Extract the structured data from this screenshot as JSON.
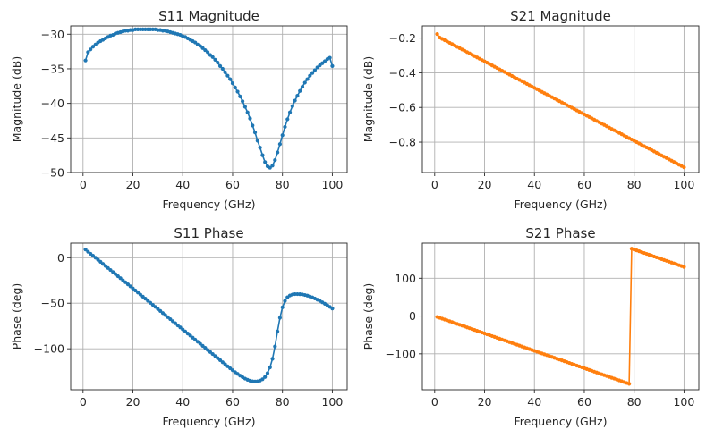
{
  "chart_data": [
    {
      "type": "line",
      "title": "S11 Magnitude",
      "xlabel": "Frequency (GHz)",
      "ylabel": "Magnitude (dB)",
      "xlim": [
        -4.95,
        105.95
      ],
      "ylim": [
        -50.0,
        -28.8
      ],
      "xticks": [
        0,
        20,
        40,
        60,
        80,
        100
      ],
      "yticks": [
        -50,
        -45,
        -40,
        -35,
        -30
      ],
      "xtick_labels": [
        "0",
        "20",
        "40",
        "60",
        "80",
        "100"
      ],
      "ytick_labels": [
        "−50",
        "−45",
        "−40",
        "−35",
        "−30"
      ],
      "grid": true,
      "marker": "circle",
      "color": "#1f77b4",
      "series": [
        {
          "name": "S11 Magnitude",
          "x": [
            1,
            2,
            3,
            4,
            5,
            6,
            7,
            8,
            9,
            10,
            11,
            12,
            13,
            14,
            15,
            16,
            17,
            18,
            19,
            20,
            21,
            22,
            23,
            24,
            25,
            26,
            27,
            28,
            29,
            30,
            31,
            32,
            33,
            34,
            35,
            36,
            37,
            38,
            39,
            40,
            41,
            42,
            43,
            44,
            45,
            46,
            47,
            48,
            49,
            50,
            51,
            52,
            53,
            54,
            55,
            56,
            57,
            58,
            59,
            60,
            61,
            62,
            63,
            64,
            65,
            66,
            67,
            68,
            69,
            70,
            71,
            72,
            73,
            74,
            75,
            76,
            77,
            78,
            79,
            80,
            81,
            82,
            83,
            84,
            85,
            86,
            87,
            88,
            89,
            90,
            91,
            92,
            93,
            94,
            95,
            96,
            97,
            98,
            99,
            100
          ],
          "y": [
            -33.8,
            -32.6,
            -32.2,
            -31.8,
            -31.5,
            -31.2,
            -31.0,
            -30.8,
            -30.6,
            -30.4,
            -30.2,
            -30.1,
            -29.9,
            -29.8,
            -29.7,
            -29.6,
            -29.5,
            -29.5,
            -29.4,
            -29.4,
            -29.3,
            -29.3,
            -29.3,
            -29.3,
            -29.3,
            -29.3,
            -29.3,
            -29.3,
            -29.3,
            -29.4,
            -29.4,
            -29.5,
            -29.5,
            -29.6,
            -29.7,
            -29.8,
            -29.9,
            -30.0,
            -30.1,
            -30.3,
            -30.4,
            -30.6,
            -30.8,
            -31.0,
            -31.2,
            -31.5,
            -31.7,
            -32.0,
            -32.3,
            -32.6,
            -33.0,
            -33.3,
            -33.7,
            -34.1,
            -34.6,
            -35.0,
            -35.5,
            -36.0,
            -36.5,
            -37.1,
            -37.7,
            -38.3,
            -39.0,
            -39.7,
            -40.5,
            -41.3,
            -42.2,
            -43.2,
            -44.2,
            -45.4,
            -46.4,
            -47.5,
            -48.5,
            -49.1,
            -49.3,
            -49.0,
            -48.2,
            -47.1,
            -45.9,
            -44.6,
            -43.4,
            -42.3,
            -41.3,
            -40.4,
            -39.6,
            -38.9,
            -38.2,
            -37.6,
            -37.0,
            -36.5,
            -36.0,
            -35.6,
            -35.2,
            -34.8,
            -34.5,
            -34.2,
            -33.9,
            -33.6,
            -33.4,
            -34.6
          ]
        }
      ]
    },
    {
      "type": "line",
      "title": "S21 Magnitude",
      "xlabel": "Frequency (GHz)",
      "ylabel": "Magnitude (dB)",
      "xlim": [
        -4.95,
        105.95
      ],
      "ylim": [
        -0.975,
        -0.13
      ],
      "xticks": [
        0,
        20,
        40,
        60,
        80,
        100
      ],
      "yticks": [
        -0.8,
        -0.6,
        -0.4,
        -0.2
      ],
      "xtick_labels": [
        "0",
        "20",
        "40",
        "60",
        "80",
        "100"
      ],
      "ytick_labels": [
        "−0.8",
        "−0.6",
        "−0.4",
        "−0.2"
      ],
      "grid": true,
      "marker": "circle",
      "color": "#ff7f0e",
      "series": [
        {
          "name": "S21 Magnitude",
          "x_start": 1,
          "x_end": 100,
          "x_step": 1,
          "y_start": -0.177,
          "y_second": -0.197,
          "y_end": -0.945
        }
      ]
    },
    {
      "type": "line",
      "title": "S11 Phase",
      "xlabel": "Frequency (GHz)",
      "ylabel": "Phase (deg)",
      "xlim": [
        -4.95,
        105.95
      ],
      "ylim": [
        -145.0,
        16.0
      ],
      "xticks": [
        0,
        20,
        40,
        60,
        80,
        100
      ],
      "yticks": [
        -100,
        -50,
        0
      ],
      "xtick_labels": [
        "0",
        "20",
        "40",
        "60",
        "80",
        "100"
      ],
      "ytick_labels": [
        "−100",
        "−50",
        "0"
      ],
      "grid": true,
      "marker": "circle",
      "color": "#1f77b4",
      "series": [
        {
          "name": "S11 Phase",
          "x": [
            1,
            2,
            3,
            4,
            5,
            6,
            7,
            8,
            9,
            10,
            11,
            12,
            13,
            14,
            15,
            16,
            17,
            18,
            19,
            20,
            21,
            22,
            23,
            24,
            25,
            26,
            27,
            28,
            29,
            30,
            31,
            32,
            33,
            34,
            35,
            36,
            37,
            38,
            39,
            40,
            41,
            42,
            43,
            44,
            45,
            46,
            47,
            48,
            49,
            50,
            51,
            52,
            53,
            54,
            55,
            56,
            57,
            58,
            59,
            60,
            61,
            62,
            63,
            64,
            65,
            66,
            67,
            68,
            69,
            70,
            71,
            72,
            73,
            74,
            75,
            76,
            77,
            78,
            79,
            80,
            81,
            82,
            83,
            84,
            85,
            86,
            87,
            88,
            89,
            90,
            91,
            92,
            93,
            94,
            95,
            96,
            97,
            98,
            99,
            100
          ],
          "y": [
            9.0,
            6.5,
            4.3,
            2.2,
            0.0,
            -2.3,
            -4.5,
            -6.8,
            -9.0,
            -11.3,
            -13.5,
            -15.8,
            -18.0,
            -20.3,
            -22.5,
            -24.8,
            -27.0,
            -29.3,
            -31.5,
            -33.8,
            -36.0,
            -38.3,
            -40.5,
            -42.8,
            -45.0,
            -47.3,
            -49.5,
            -51.8,
            -54.0,
            -56.3,
            -58.5,
            -60.8,
            -63.0,
            -65.3,
            -67.5,
            -69.8,
            -72.0,
            -74.3,
            -76.5,
            -78.8,
            -81.0,
            -83.3,
            -85.5,
            -87.8,
            -90.0,
            -92.3,
            -94.5,
            -96.8,
            -99.0,
            -101.3,
            -103.5,
            -105.8,
            -108.0,
            -110.3,
            -112.5,
            -114.8,
            -117.0,
            -119.3,
            -121.5,
            -123.6,
            -125.7,
            -127.6,
            -129.5,
            -131.2,
            -132.8,
            -134.1,
            -135.1,
            -135.8,
            -136.0,
            -135.8,
            -135.0,
            -133.5,
            -131.0,
            -126.8,
            -120.5,
            -111.0,
            -97.5,
            -81.0,
            -66.0,
            -54.5,
            -47.5,
            -43.5,
            -41.5,
            -40.5,
            -40.0,
            -40.0,
            -40.1,
            -40.4,
            -41.0,
            -41.7,
            -42.6,
            -43.6,
            -44.8,
            -46.1,
            -47.5,
            -49.0,
            -50.6,
            -52.3,
            -54.0,
            -55.8
          ]
        }
      ]
    },
    {
      "type": "line",
      "title": "S21 Phase",
      "xlabel": "Frequency (GHz)",
      "ylabel": "Phase (deg)",
      "xlim": [
        -4.95,
        105.95
      ],
      "ylim": [
        -195.0,
        193.0
      ],
      "xticks": [
        0,
        20,
        40,
        60,
        80,
        100
      ],
      "yticks": [
        -100,
        0,
        100
      ],
      "xtick_labels": [
        "0",
        "20",
        "40",
        "60",
        "80",
        "100"
      ],
      "ytick_labels": [
        "−100",
        "0",
        "100"
      ],
      "grid": true,
      "marker": "circle",
      "color": "#ff7f0e",
      "series": [
        {
          "name": "S21 Phase",
          "x_start": 1,
          "x_end": 100,
          "x_step": 1,
          "y_start": -2.3,
          "y_per_ghz": -2.3,
          "wrap_at": -180,
          "wrap_add": 360
        }
      ]
    }
  ]
}
